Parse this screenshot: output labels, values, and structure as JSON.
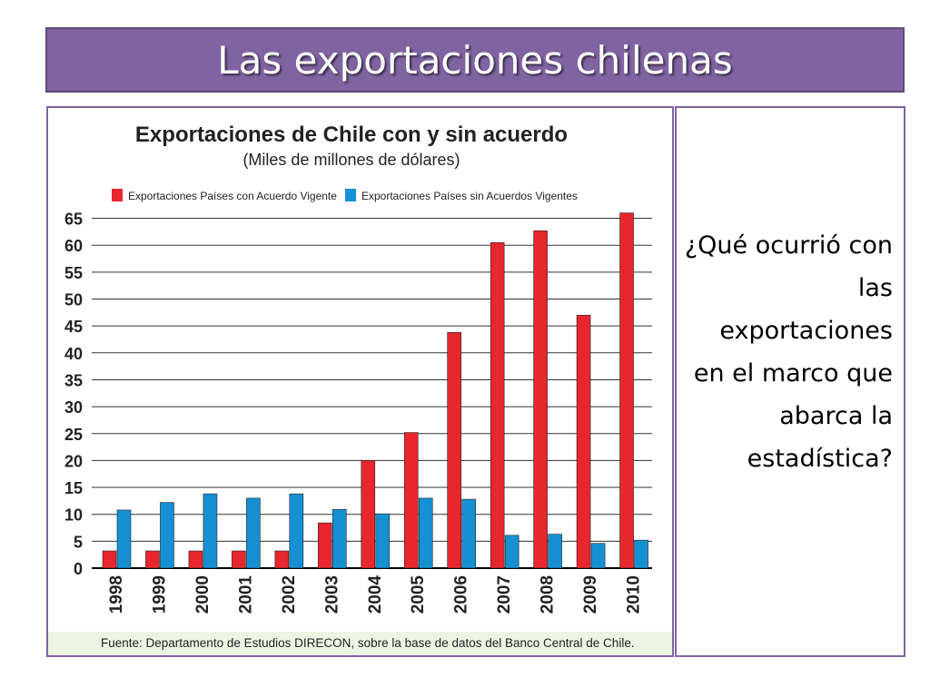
{
  "slide": {
    "title": "Las exportaciones chilenas",
    "question": "¿Qué ocurrió con las exportaciones en el marco que abarca la estadística?"
  },
  "chart_data": {
    "type": "bar",
    "title": "Exportaciones de Chile con y sin acuerdo",
    "subtitle": "(Miles de millones de dólares)",
    "categories": [
      "1998",
      "1999",
      "2000",
      "2001",
      "2002",
      "2003",
      "2004",
      "2005",
      "2006",
      "2007",
      "2008",
      "2009",
      "2010"
    ],
    "series": [
      {
        "name": "Exportaciones Países con Acuerdo Vigente",
        "color": "#e8262d",
        "values": [
          3.2,
          3.2,
          3.2,
          3.2,
          3.2,
          8.4,
          20,
          25.2,
          43.8,
          60.5,
          62.7,
          47,
          66
        ]
      },
      {
        "name": "Exportaciones Países sin Acuerdos Vigentes",
        "color": "#1591d3",
        "values": [
          10.8,
          12.2,
          13.8,
          13,
          13.8,
          10.9,
          10.1,
          13,
          12.8,
          6.1,
          6.3,
          4.6,
          5.2
        ]
      }
    ],
    "yticks": [
      0,
      5,
      10,
      15,
      20,
      25,
      30,
      35,
      40,
      45,
      50,
      55,
      60,
      65
    ],
    "ylim": [
      0,
      66
    ],
    "grid": true,
    "legend": "top",
    "source": "Fuente: Departamento de Estudios DIRECON, sobre la base de datos del Banco Central de Chile."
  }
}
